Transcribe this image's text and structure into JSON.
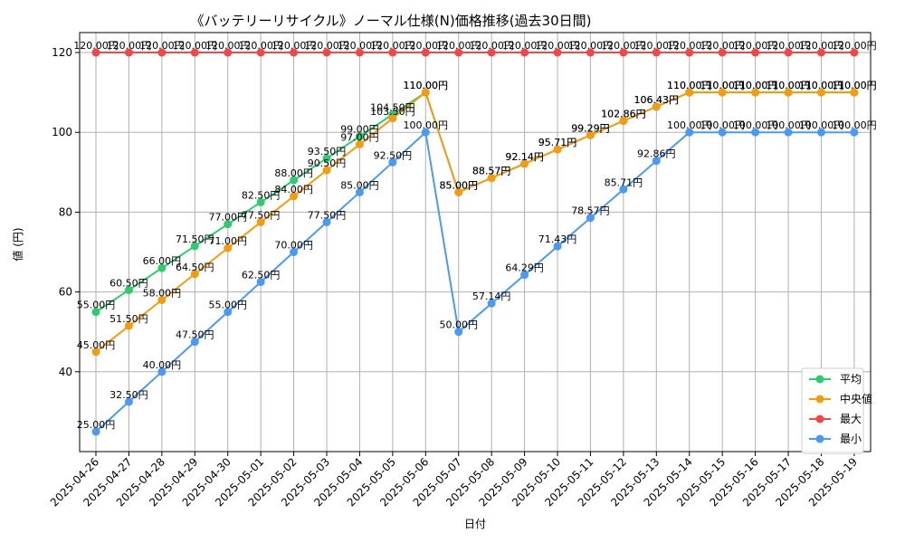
{
  "chart_data": {
    "type": "line",
    "title": "《バッテリーリサイクル》ノーマル仕様(N)価格推移(過去30日間)",
    "xlabel": "日付",
    "ylabel": "値 (円)",
    "ylim": [
      20,
      125
    ],
    "yticks": [
      40,
      60,
      80,
      100,
      120
    ],
    "grid": true,
    "legend_position": "bottom-right",
    "value_suffix": "円",
    "categories": [
      "2025-04-26",
      "2025-04-27",
      "2025-04-28",
      "2025-04-29",
      "2025-04-30",
      "2025-05-01",
      "2025-05-02",
      "2025-05-03",
      "2025-05-04",
      "2025-05-05",
      "2025-05-06",
      "2025-05-07",
      "2025-05-08",
      "2025-05-09",
      "2025-05-10",
      "2025-05-11",
      "2025-05-12",
      "2025-05-13",
      "2025-05-14",
      "2025-05-15",
      "2025-05-16",
      "2025-05-17",
      "2025-05-18",
      "2025-05-19"
    ],
    "series": [
      {
        "name": "平均",
        "color": "#2ecc71",
        "values": [
          55.0,
          60.5,
          66.0,
          71.5,
          77.0,
          82.5,
          88.0,
          93.5,
          99.0,
          104.5,
          110.0,
          85.0,
          88.57,
          92.14,
          95.71,
          99.29,
          102.86,
          106.43,
          110.0,
          110.0,
          110.0,
          110.0,
          110.0,
          110.0
        ]
      },
      {
        "name": "中央値",
        "color": "#f39c12",
        "values": [
          45.0,
          51.5,
          58.0,
          64.5,
          71.0,
          77.5,
          84.0,
          90.5,
          97.0,
          103.5,
          110.0,
          85.0,
          88.57,
          92.14,
          95.71,
          99.29,
          102.86,
          106.43,
          110.0,
          110.0,
          110.0,
          110.0,
          110.0,
          110.0
        ]
      },
      {
        "name": "最大",
        "color": "#f04848",
        "values": [
          120.0,
          120.0,
          120.0,
          120.0,
          120.0,
          120.0,
          120.0,
          120.0,
          120.0,
          120.0,
          120.0,
          120.0,
          120.0,
          120.0,
          120.0,
          120.0,
          120.0,
          120.0,
          120.0,
          120.0,
          120.0,
          120.0,
          120.0,
          120.0
        ]
      },
      {
        "name": "最小",
        "color": "#4a9af5",
        "values": [
          25.0,
          32.5,
          40.0,
          47.5,
          55.0,
          62.5,
          70.0,
          77.5,
          85.0,
          92.5,
          100.0,
          50.0,
          57.14,
          64.29,
          71.43,
          78.57,
          85.71,
          92.86,
          100.0,
          100.0,
          100.0,
          100.0,
          100.0,
          100.0
        ]
      }
    ]
  }
}
